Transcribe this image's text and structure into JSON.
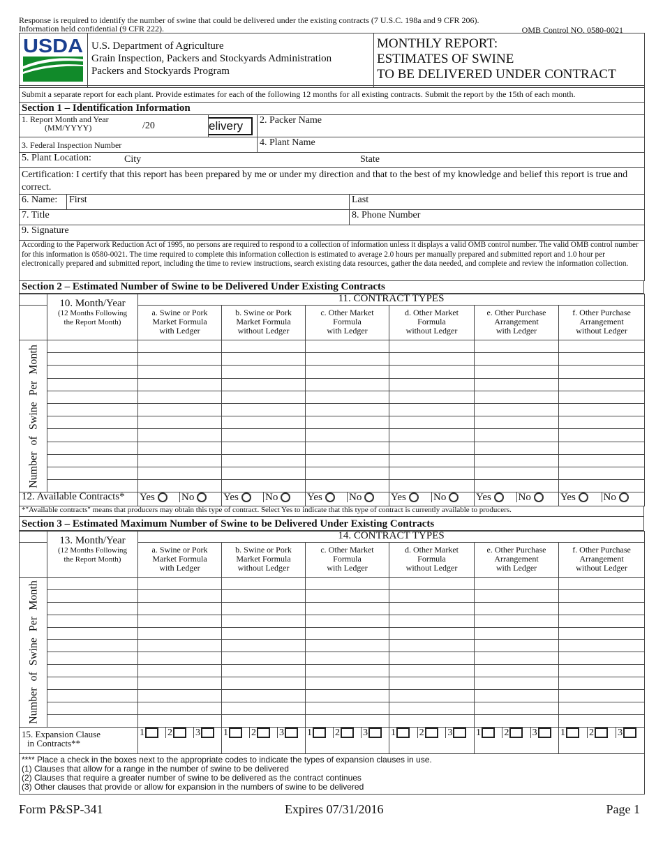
{
  "top_notice": {
    "line1": "Response is required to identify the number of swine that could be delivered under the existing contracts (7 U.S.C. 198a and 9 CFR 206).",
    "line2": "Information held confidential (9 CFR 222).",
    "omb": "OMB Control NO. 0580-0021"
  },
  "header": {
    "logo": "USDA",
    "agency": [
      "U.S. Department of Agriculture",
      "Grain Inspection, Packers and Stockyards Administration",
      "Packers and Stockyards Program"
    ],
    "title": [
      "MONTHLY REPORT:",
      "ESTIMATES OF SWINE",
      "TO BE DELIVERED UNDER CONTRACT"
    ],
    "logo_blue": "#1a3f8f",
    "logo_green": "#118a2a"
  },
  "instructions": "Submit a separate report for each plant. Provide estimates for each of the following 12 months for all existing contracts. Submit the report by the 15th of each month.",
  "section1": {
    "title": "Section 1 – Identification Information",
    "report_month_label": "1. Report Month and Year",
    "report_month_sub": "(MM/YYYY)",
    "report_month_value": "/20",
    "delivery_field_value": "elivery",
    "packer_name": "2. Packer Name",
    "federal_inspection": "3. Federal Inspection Number",
    "plant_name": "4.  Plant Name",
    "plant_location": "5. Plant Location:",
    "city": "City",
    "state": "State",
    "certification": "Certification: I certify that this report has been prepared by me or under my direction and that to the best of my knowledge and belief this report is true and correct.",
    "name": "6. Name:",
    "first": "First",
    "last": "Last",
    "title_field": "7. Title",
    "phone": "8.  Phone Number",
    "signature": "9. Signature"
  },
  "pra": "According to the Paperwork Reduction Act of 1995, no persons are required to respond to a collection of information unless it displays a valid OMB control number. The valid OMB control number for this information is 0580-0021. The time required to complete this information collection is estimated to average 2.0 hours per manually prepared and submitted report and 1.0 hour per electronically prepared and submitted report, including the time to review instructions, search existing data resources, gather the data needed, and complete and review the information collection.",
  "contract_columns": [
    [
      "a. Swine or Pork",
      "Market Formula",
      "with Ledger"
    ],
    [
      "b. Swine or Pork",
      "Market Formula",
      "without Ledger"
    ],
    [
      "c. Other Market",
      "Formula",
      "with Ledger"
    ],
    [
      "d. Other Market",
      "Formula",
      "without Ledger"
    ],
    [
      "e. Other Purchase",
      "Arrangement",
      "with Ledger"
    ],
    [
      "f. Other Purchase",
      "Arrangement",
      "without Ledger"
    ]
  ],
  "vertical_label": "Number of  Swine Per Month",
  "section2": {
    "title": "Section 2 – Estimated Number of Swine to be Delivered Under Existing Contracts",
    "contract_types": "11. CONTRACT TYPES",
    "month_label": "10. Month/Year",
    "month_sub": "(12 Months Following the Report Month)",
    "available_label": "12. Available Contracts*",
    "yes": "Yes",
    "no": "No",
    "footnote": "*\"Available contracts\" means that producers may obtain this type of contract.  Select Yes to indicate that this type of contract is currently available to producers."
  },
  "section3": {
    "title": "Section 3 – Estimated Maximum Number of Swine to be Delivered Under Existing Contracts",
    "contract_types": "14. CONTRACT TYPES",
    "month_label": "13. Month/Year",
    "month_sub": "(12 Months Following the Report Month)",
    "expansion_label": "15. Expansion Clause",
    "expansion_label2": "in Contracts**",
    "codes": [
      "1",
      "2",
      "3"
    ],
    "notes": [
      "**** Place a check in the boxes next to the appropriate codes to indicate the types of expansion clauses in use.",
      "(1) Clauses that allow for a range in the number of swine to be delivered",
      "(2) Clauses that require a greater number of swine to be delivered as the contract continues",
      "(3) Other clauses that provide or allow for expansion in the numbers of swine to be delivered"
    ]
  },
  "footer": {
    "form": "Form P&SP-341",
    "expires": "Expires 07/31/2016",
    "page": "Page 1"
  }
}
